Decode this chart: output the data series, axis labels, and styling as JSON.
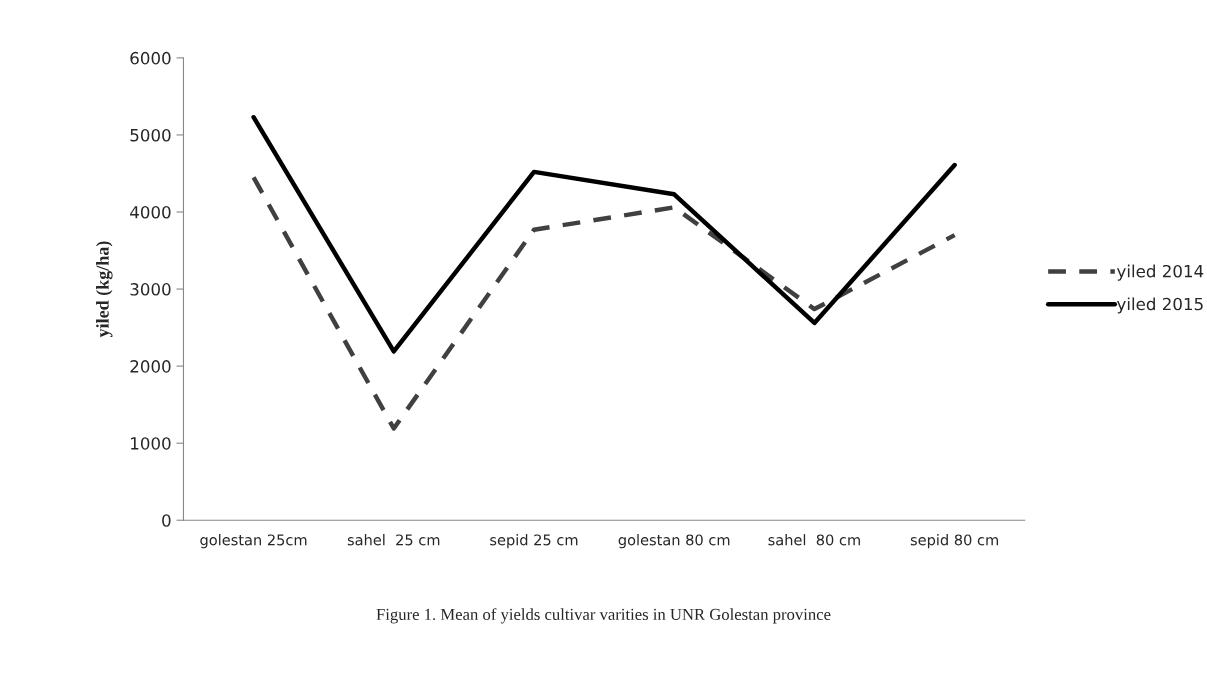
{
  "chart_data": {
    "type": "line",
    "ylabel": "yiled (kg/ha)",
    "categories": [
      "golestan 25cm",
      "sahel  25 cm",
      "sepid 25 cm",
      "golestan 80 cm",
      "sahel  80 cm",
      "sepid 80 cm"
    ],
    "series": [
      {
        "name": "yiled 2014",
        "color": "#404040",
        "line_style": "dashed",
        "values": [
          4450,
          1190,
          3770,
          4060,
          2740,
          3700
        ]
      },
      {
        "name": "yiled 2015",
        "color": "#000000",
        "line_style": "solid",
        "values": [
          5230,
          2190,
          4520,
          4230,
          2560,
          4610
        ]
      }
    ],
    "ylim": [
      0,
      6000
    ],
    "yticks": [
      0,
      1000,
      2000,
      3000,
      4000,
      5000,
      6000
    ],
    "grid": false,
    "legend": "right",
    "marker": "none",
    "annotations": [
      "Figure 1. Mean of yields cultivar varities in UNR Golestan province"
    ]
  }
}
